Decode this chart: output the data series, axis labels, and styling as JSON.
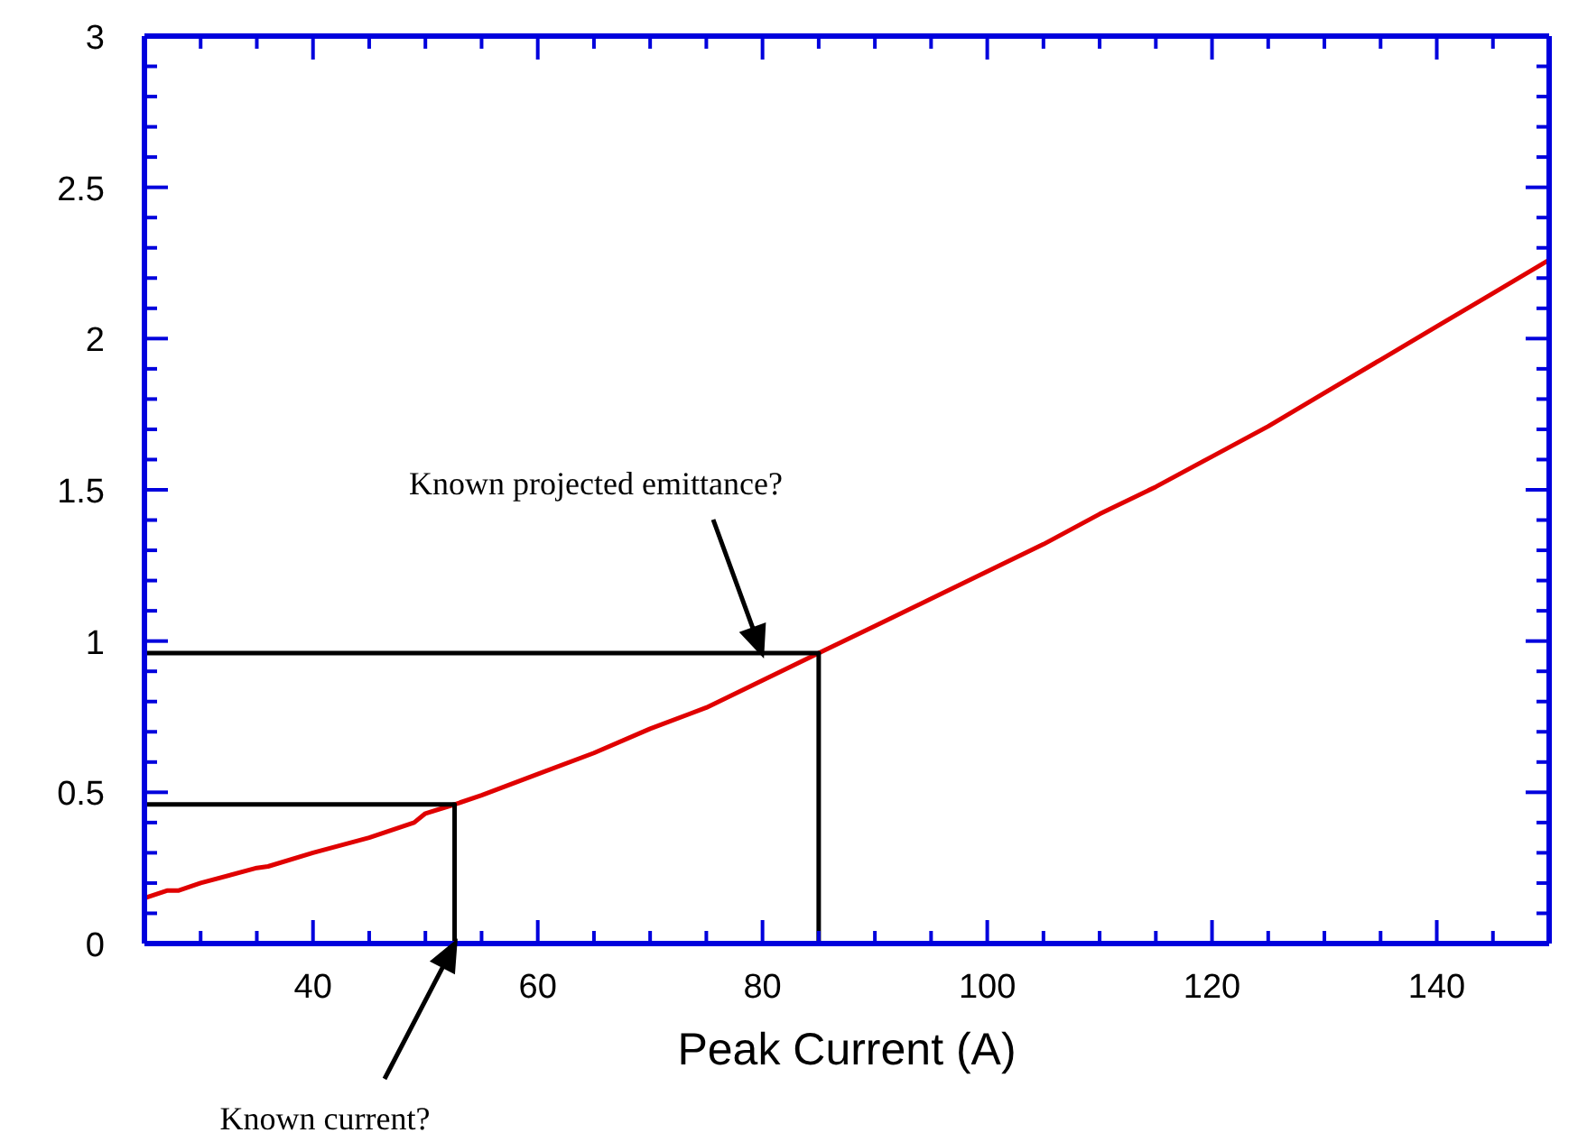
{
  "chart_data": {
    "type": "line",
    "xlabel": "Peak Current (A)",
    "xlim": [
      25,
      150
    ],
    "xticks": [
      {
        "value": 25,
        "label": null
      },
      {
        "value": 30,
        "label": null
      },
      {
        "value": 35,
        "label": null
      },
      40,
      {
        "value": 45,
        "label": null
      },
      {
        "value": 50,
        "label": null
      },
      {
        "value": 55,
        "label": null
      },
      60,
      {
        "value": 65,
        "label": null
      },
      {
        "value": 70,
        "label": null
      },
      {
        "value": 75,
        "label": null
      },
      80,
      {
        "value": 85,
        "label": null
      },
      {
        "value": 90,
        "label": null
      },
      {
        "value": 95,
        "label": null
      },
      100,
      {
        "value": 105,
        "label": null
      },
      {
        "value": 110,
        "label": null
      },
      {
        "value": 115,
        "label": null
      },
      120,
      {
        "value": 125,
        "label": null
      },
      {
        "value": 130,
        "label": null
      },
      {
        "value": 135,
        "label": null
      },
      140,
      {
        "value": 145,
        "label": null
      },
      {
        "value": 150,
        "label": null
      }
    ],
    "ylim": [
      0,
      3
    ],
    "yticks": [
      0,
      {
        "value": 0.1,
        "label": null
      },
      {
        "value": 0.2,
        "label": null
      },
      {
        "value": 0.3,
        "label": null
      },
      {
        "value": 0.4,
        "label": null
      },
      0.5,
      {
        "value": 0.6,
        "label": null
      },
      {
        "value": 0.7,
        "label": null
      },
      {
        "value": 0.8,
        "label": null
      },
      {
        "value": 0.9,
        "label": null
      },
      1,
      {
        "value": 1.1,
        "label": null
      },
      {
        "value": 1.2,
        "label": null
      },
      {
        "value": 1.3,
        "label": null
      },
      {
        "value": 1.4,
        "label": null
      },
      1.5,
      {
        "value": 1.6,
        "label": null
      },
      {
        "value": 1.7,
        "label": null
      },
      {
        "value": 1.8,
        "label": null
      },
      {
        "value": 1.9,
        "label": null
      },
      2,
      {
        "value": 2.1,
        "label": null
      },
      {
        "value": 2.2,
        "label": null
      },
      {
        "value": 2.3,
        "label": null
      },
      {
        "value": 2.4,
        "label": null
      },
      2.5,
      {
        "value": 2.6,
        "label": null
      },
      {
        "value": 2.7,
        "label": null
      },
      {
        "value": 2.8,
        "label": null
      },
      {
        "value": 2.9,
        "label": null
      },
      3
    ],
    "marker": "none",
    "line_style": "solid",
    "series": [
      {
        "color": "#e00000",
        "x": [
          25,
          27,
          28,
          30,
          35,
          36,
          40,
          45,
          49,
          50,
          52.6,
          55,
          60,
          65,
          70,
          75,
          80,
          85,
          90,
          95,
          100,
          105,
          110,
          115,
          120,
          125,
          130,
          135,
          140,
          145,
          150
        ],
        "values": [
          0.15,
          0.175,
          0.175,
          0.2,
          0.25,
          0.255,
          0.3,
          0.35,
          0.4,
          0.43,
          0.46,
          0.49,
          0.56,
          0.63,
          0.71,
          0.78,
          0.87,
          0.96,
          1.05,
          1.14,
          1.23,
          1.32,
          1.42,
          1.51,
          1.61,
          1.71,
          1.82,
          1.93,
          2.04,
          2.15,
          2.26
        ]
      },
      {
        "color": "#000000",
        "x": [
          25,
          85,
          85
        ],
        "values": [
          0.96,
          0.96,
          0
        ]
      },
      {
        "color": "#000000",
        "x": [
          25,
          52.6,
          52.6
        ],
        "values": [
          0.46,
          0.46,
          0
        ]
      }
    ],
    "annotations": [
      "Known projected emittance?",
      "Known current?"
    ]
  }
}
